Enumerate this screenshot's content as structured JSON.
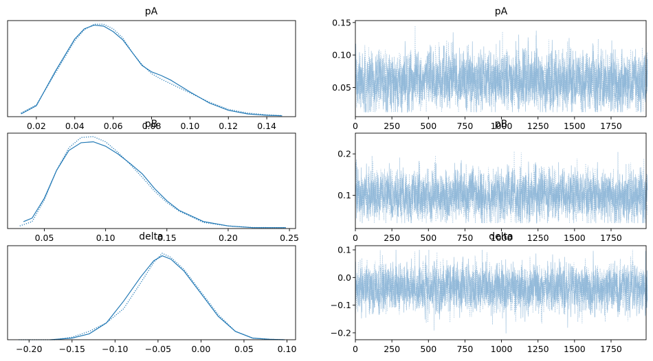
{
  "colors": {
    "series": "#1f77b4",
    "trace": "#8cb5d7",
    "axis": "#000000"
  },
  "chart_data": [
    {
      "type": "line",
      "panel": "density",
      "title": "pA",
      "xlim": [
        0.005,
        0.155
      ],
      "ylim": [
        0,
        1.05
      ],
      "xticks": [
        0.02,
        0.04,
        0.06,
        0.08,
        0.1,
        0.12,
        0.14
      ],
      "xtick_labels": [
        "0.02",
        "0.04",
        "0.06",
        "0.08",
        "0.10",
        "0.12",
        "0.14"
      ],
      "yticks": [],
      "series": [
        {
          "style": "solid",
          "x": [
            0.012,
            0.02,
            0.03,
            0.04,
            0.045,
            0.05,
            0.055,
            0.06,
            0.065,
            0.07,
            0.075,
            0.08,
            0.085,
            0.09,
            0.1,
            0.11,
            0.12,
            0.13,
            0.14,
            0.148
          ],
          "y": [
            0.03,
            0.12,
            0.5,
            0.85,
            0.96,
            1.0,
            0.99,
            0.93,
            0.84,
            0.7,
            0.56,
            0.49,
            0.45,
            0.4,
            0.27,
            0.15,
            0.07,
            0.03,
            0.015,
            0.01
          ]
        },
        {
          "style": "dotted",
          "x": [
            0.012,
            0.02,
            0.03,
            0.04,
            0.045,
            0.05,
            0.055,
            0.06,
            0.065,
            0.07,
            0.075,
            0.08,
            0.085,
            0.09,
            0.1,
            0.11,
            0.12,
            0.13,
            0.14,
            0.148
          ],
          "y": [
            0.04,
            0.13,
            0.48,
            0.83,
            0.95,
            1.01,
            1.01,
            0.96,
            0.86,
            0.7,
            0.57,
            0.47,
            0.41,
            0.36,
            0.26,
            0.16,
            0.08,
            0.04,
            0.02,
            0.012
          ]
        }
      ]
    },
    {
      "type": "line",
      "panel": "trace",
      "title": "pA",
      "xlim": [
        0,
        1990
      ],
      "ylim": [
        0.005,
        0.153
      ],
      "xticks": [
        0,
        250,
        500,
        750,
        1000,
        1250,
        1500,
        1750
      ],
      "xtick_labels": [
        "0",
        "250",
        "500",
        "750",
        "1000",
        "1250",
        "1500",
        "1750"
      ],
      "yticks": [
        0.05,
        0.1,
        0.15
      ],
      "ytick_labels": [
        "0.05",
        "0.10",
        "0.15"
      ],
      "trace_summary": {
        "draws": 2000,
        "chains": 2,
        "center": 0.06,
        "spread": 0.022,
        "min": 0.012,
        "max": 0.145
      }
    },
    {
      "type": "line",
      "panel": "density",
      "title": "pB",
      "xlim": [
        0.02,
        0.255
      ],
      "ylim": [
        0,
        1.1
      ],
      "xticks": [
        0.05,
        0.1,
        0.15,
        0.2,
        0.25
      ],
      "xtick_labels": [
        "0.05",
        "0.10",
        "0.15",
        "0.20",
        "0.25"
      ],
      "yticks": [],
      "series": [
        {
          "style": "solid",
          "x": [
            0.033,
            0.04,
            0.05,
            0.06,
            0.07,
            0.08,
            0.09,
            0.1,
            0.11,
            0.12,
            0.13,
            0.14,
            0.15,
            0.16,
            0.18,
            0.2,
            0.22,
            0.247
          ],
          "y": [
            0.08,
            0.12,
            0.35,
            0.67,
            0.9,
            0.99,
            1.0,
            0.95,
            0.86,
            0.75,
            0.63,
            0.46,
            0.32,
            0.21,
            0.08,
            0.03,
            0.01,
            0.01
          ]
        },
        {
          "style": "dotted",
          "x": [
            0.03,
            0.04,
            0.05,
            0.06,
            0.07,
            0.08,
            0.09,
            0.1,
            0.11,
            0.12,
            0.13,
            0.14,
            0.15,
            0.16,
            0.18,
            0.2,
            0.22,
            0.247
          ],
          "y": [
            0.03,
            0.08,
            0.33,
            0.67,
            0.93,
            1.05,
            1.06,
            1.0,
            0.88,
            0.74,
            0.59,
            0.43,
            0.3,
            0.2,
            0.07,
            0.03,
            0.012,
            0.01
          ]
        }
      ]
    },
    {
      "type": "line",
      "panel": "trace",
      "title": "pB",
      "xlim": [
        0,
        1990
      ],
      "ylim": [
        0.02,
        0.25
      ],
      "xticks": [
        0,
        250,
        500,
        750,
        1000,
        1250,
        1500,
        1750
      ],
      "xtick_labels": [
        "0",
        "250",
        "500",
        "750",
        "1000",
        "1250",
        "1500",
        "1750"
      ],
      "yticks": [
        0.1,
        0.2
      ],
      "ytick_labels": [
        "0.1",
        "0.2"
      ],
      "trace_summary": {
        "draws": 2000,
        "chains": 2,
        "center": 0.1,
        "spread": 0.03,
        "min": 0.033,
        "max": 0.24
      }
    },
    {
      "type": "line",
      "panel": "density",
      "title": "delta",
      "xlim": [
        -0.225,
        0.11
      ],
      "ylim": [
        0,
        1.12
      ],
      "xticks": [
        -0.2,
        -0.15,
        -0.1,
        -0.05,
        0.0,
        0.05,
        0.1
      ],
      "xtick_labels": [
        "−0.20",
        "−0.15",
        "−0.10",
        "−0.05",
        "0.00",
        "0.05",
        "0.10"
      ],
      "yticks": [],
      "series": [
        {
          "style": "solid",
          "x": [
            -0.175,
            -0.15,
            -0.13,
            -0.11,
            -0.09,
            -0.07,
            -0.055,
            -0.045,
            -0.035,
            -0.02,
            0.0,
            0.02,
            0.04,
            0.06,
            0.08,
            0.097
          ],
          "y": [
            0.0,
            0.02,
            0.07,
            0.2,
            0.46,
            0.75,
            0.94,
            1.0,
            0.96,
            0.82,
            0.55,
            0.28,
            0.1,
            0.02,
            0.005,
            0.0
          ]
        },
        {
          "style": "dotted",
          "x": [
            -0.212,
            -0.17,
            -0.15,
            -0.13,
            -0.11,
            -0.09,
            -0.07,
            -0.055,
            -0.045,
            -0.035,
            -0.02,
            0.0,
            0.02,
            0.04,
            0.06,
            0.08,
            0.097
          ],
          "y": [
            0.0,
            0.0,
            0.03,
            0.1,
            0.2,
            0.37,
            0.68,
            0.92,
            1.03,
            0.98,
            0.84,
            0.57,
            0.3,
            0.1,
            0.02,
            0.005,
            0.0
          ]
        }
      ]
    },
    {
      "type": "line",
      "panel": "trace",
      "title": "delta",
      "xlim": [
        0,
        1990
      ],
      "ylim": [
        -0.225,
        0.115
      ],
      "xticks": [
        0,
        250,
        500,
        750,
        1000,
        1250,
        1500,
        1750
      ],
      "xtick_labels": [
        "0",
        "250",
        "500",
        "750",
        "1000",
        "1250",
        "1500",
        "1750"
      ],
      "yticks": [
        -0.2,
        -0.1,
        0.0,
        0.1
      ],
      "ytick_labels": [
        "−0.2",
        "−0.1",
        "0.0",
        "0.1"
      ],
      "trace_summary": {
        "draws": 2000,
        "chains": 2,
        "center": -0.04,
        "spread": 0.042,
        "min": -0.21,
        "max": 0.1
      }
    }
  ]
}
